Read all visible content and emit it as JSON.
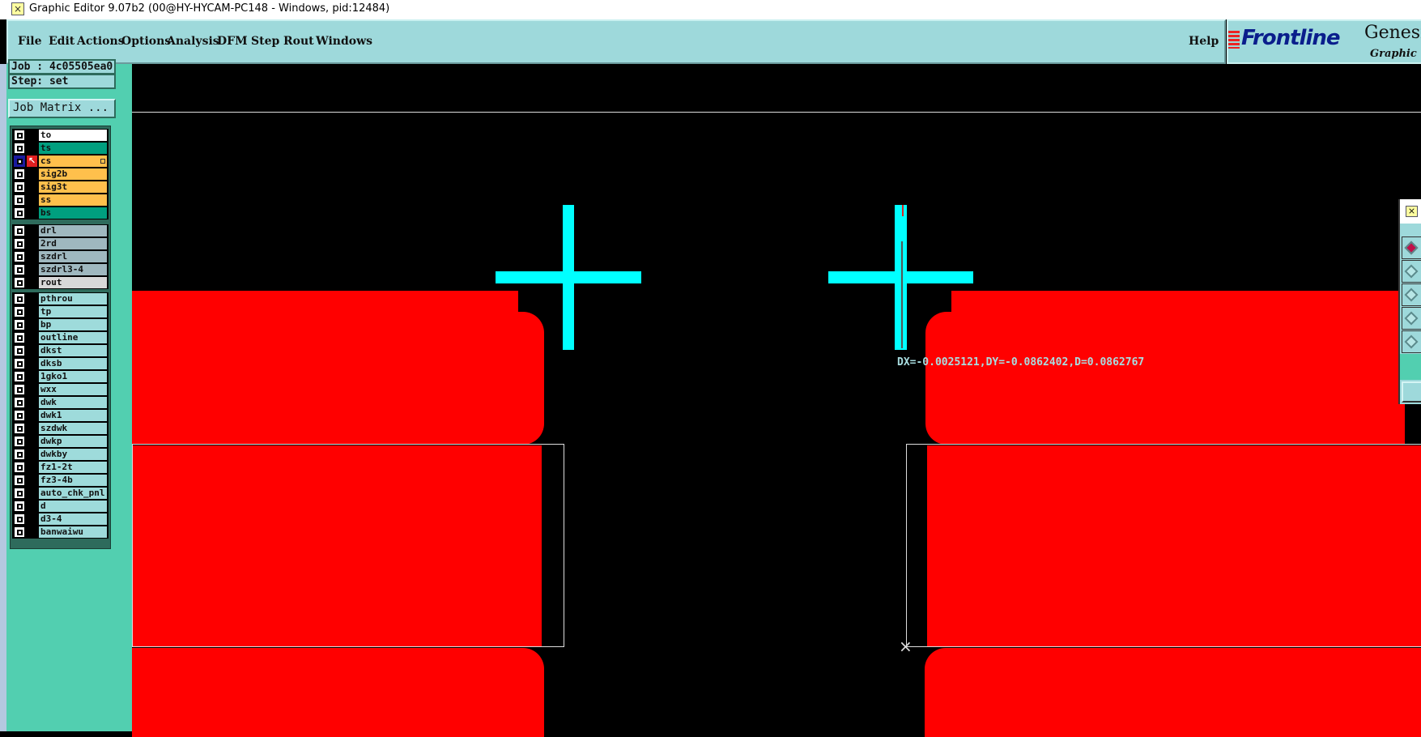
{
  "window": {
    "title": "Graphic Editor 9.07b2 (00@HY-HYCAM-PC148 - Windows, pid:12484)"
  },
  "menu": {
    "items": [
      "File",
      "Edit",
      "Actions",
      "Options",
      "Analysis",
      "DFM",
      "Step",
      "Rout",
      "Windows"
    ],
    "help": "Help"
  },
  "logo": {
    "brand": "Frontline",
    "product": "Genesi",
    "subtitle": "Graphic"
  },
  "panel": {
    "job": "Job : 4c05505ea0",
    "step": "Step: set",
    "job_matrix": "Job Matrix ..."
  },
  "layers": [
    {
      "name": "to",
      "color": "#ffffff"
    },
    {
      "name": "ts",
      "color": "#009f7f"
    },
    {
      "name": "cs",
      "color": "#ffc04c",
      "active": true
    },
    {
      "name": "sig2b",
      "color": "#ffc04c"
    },
    {
      "name": "sig3t",
      "color": "#ffc04c"
    },
    {
      "name": "ss",
      "color": "#ffc04c"
    },
    {
      "name": "bs",
      "color": "#009f7f"
    },
    {
      "name": "drl",
      "color": "#9fb8bf"
    },
    {
      "name": "2rd",
      "color": "#9fb8bf"
    },
    {
      "name": "szdrl",
      "color": "#9fb8bf"
    },
    {
      "name": "szdrl3-4",
      "color": "#9fb8bf"
    },
    {
      "name": "rout",
      "color": "#d8d8d8"
    },
    {
      "name": "pthrou",
      "color": "#9edbdb"
    },
    {
      "name": "tp",
      "color": "#9edbdb"
    },
    {
      "name": "bp",
      "color": "#9edbdb"
    },
    {
      "name": "outline",
      "color": "#9edbdb"
    },
    {
      "name": "dkst",
      "color": "#9edbdb"
    },
    {
      "name": "dksb",
      "color": "#9edbdb"
    },
    {
      "name": "1gko1",
      "color": "#9edbdb"
    },
    {
      "name": "wxx",
      "color": "#9edbdb"
    },
    {
      "name": "dwk",
      "color": "#9edbdb"
    },
    {
      "name": "dwk1",
      "color": "#9edbdb"
    },
    {
      "name": "szdwk",
      "color": "#9edbdb"
    },
    {
      "name": "dwkp",
      "color": "#9edbdb"
    },
    {
      "name": "dwkby",
      "color": "#9edbdb"
    },
    {
      "name": "fz1-2t",
      "color": "#9edbdb"
    },
    {
      "name": "fz3-4b",
      "color": "#9edbdb"
    },
    {
      "name": "auto_chk_pnl",
      "color": "#9edbdb"
    },
    {
      "name": "d",
      "color": "#9edbdb"
    },
    {
      "name": "d3-4",
      "color": "#9edbdb"
    },
    {
      "name": "banwaiwu",
      "color": "#9edbdb"
    }
  ],
  "canvas": {
    "measurement": "DX=-0.0025121,DY=-0.0862402,D=0.0862767",
    "pad_color": "#ff0000",
    "target_color": "#00ffff"
  }
}
